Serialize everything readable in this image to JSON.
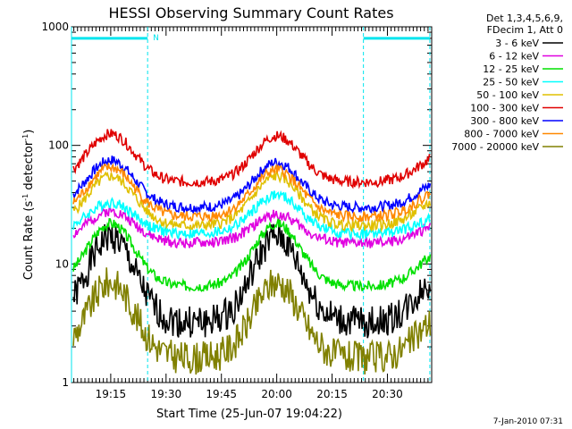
{
  "chart_data": {
    "type": "line",
    "title": "HESSI Observing Summary Count Rates",
    "xlabel": "Start Time (25-Jun-07 19:04:22)",
    "ylabel": "Count Rate (s⁻¹ detector⁻¹)",
    "ylabel_main": "Count Rate (s",
    "ylabel_sup1": "-1",
    "ylabel_mid": " detector",
    "ylabel_sup2": "-1",
    "ylabel_end": ")",
    "yscale": "log",
    "ylim": [
      1,
      1000
    ],
    "xlim": [
      "19:04:22",
      "20:42:00"
    ],
    "xticks": [
      "19:15",
      "19:30",
      "19:45",
      "20:00",
      "20:15",
      "20:30"
    ],
    "yticks": [
      "1",
      "10",
      "100",
      "1000"
    ],
    "legend_header": [
      "Det 1,3,4,5,6,9,",
      "FDecim 1, Att 0"
    ],
    "legend_position": "top-right, outside plot",
    "footer_date": "7-Jan-2010 07:31",
    "night_marker": "N",
    "annotations": {
      "saa_intervals": [
        [
          "19:04:22",
          "19:25:00"
        ],
        [
          "20:23:30",
          "20:41:30"
        ]
      ],
      "night_top_marker_label": "N",
      "saa_level": 800
    },
    "series": [
      {
        "name": "3 - 6 keV",
        "color": "#000000",
        "peak1": 17,
        "trough": 3.2,
        "peak2": 17
      },
      {
        "name": "6 - 12 keV",
        "color": "#e000e0",
        "peak1": 28,
        "trough": 15,
        "peak2": 26
      },
      {
        "name": "12 - 25 keV",
        "color": "#00e000",
        "peak1": 22,
        "trough": 6.5,
        "peak2": 22
      },
      {
        "name": "25 - 50 keV",
        "color": "#00ffff",
        "peak1": 33,
        "trough": 18,
        "peak2": 38
      },
      {
        "name": "50 - 100 keV",
        "color": "#e0c000",
        "peak1": 55,
        "trough": 21,
        "peak2": 55
      },
      {
        "name": "100 - 300 keV",
        "color": "#e00000",
        "peak1": 125,
        "trough": 49,
        "peak2": 120
      },
      {
        "name": "300 - 800 keV",
        "color": "#0000ff",
        "peak1": 75,
        "trough": 30,
        "peak2": 72
      },
      {
        "name": "800 - 7000 keV",
        "color": "#ff8800",
        "peak1": 65,
        "trough": 25,
        "peak2": 62
      },
      {
        "name": "7000 - 20000 keV",
        "color": "#808000",
        "peak1": 7,
        "trough": 1.6,
        "peak2": 7
      }
    ],
    "grid": false
  }
}
